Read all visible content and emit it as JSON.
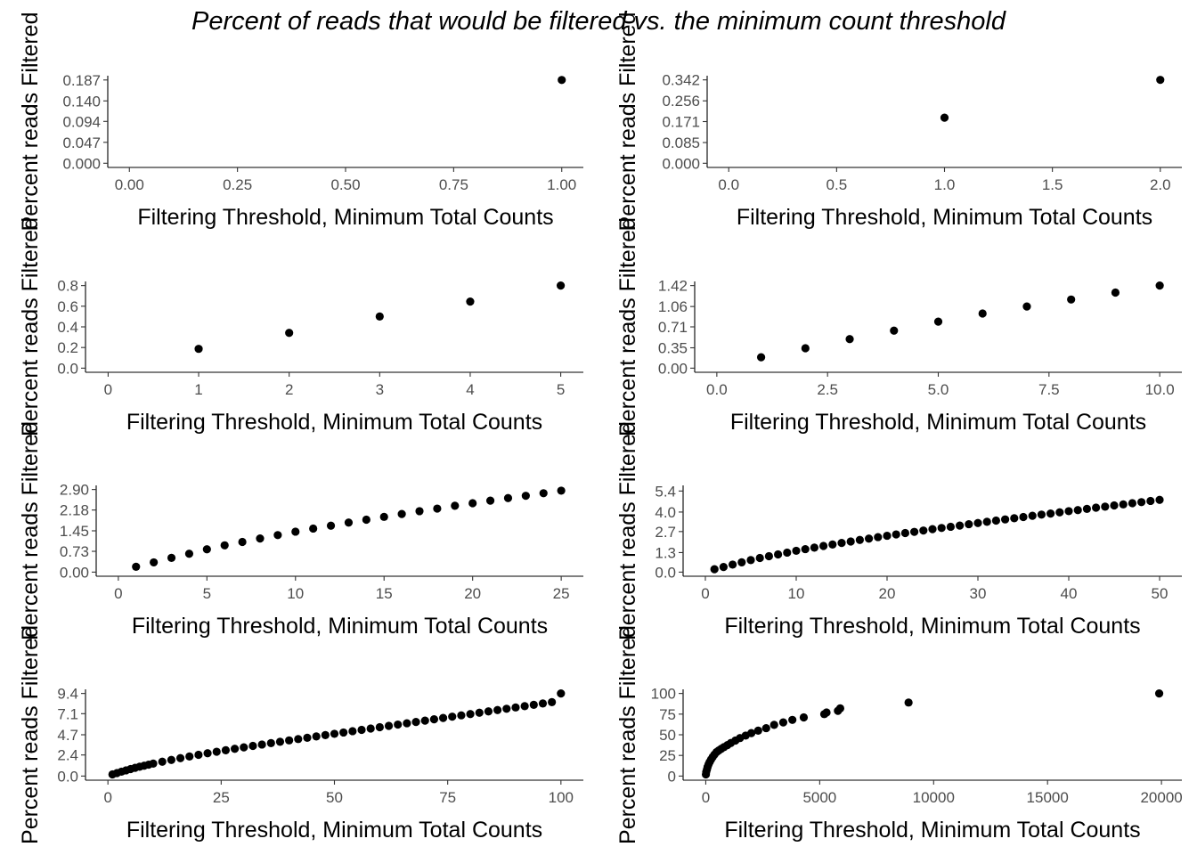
{
  "title": "Percent of reads that would be filtered vs. the minimum count threshold",
  "chart_data": [
    {
      "type": "scatter",
      "xlabel": "Filtering Threshold, Minimum Total Counts",
      "ylabel": "Percent reads Filtered",
      "xlim": [
        -0.05,
        1.05
      ],
      "ylim": [
        -0.0094,
        0.1966
      ],
      "xticks": [
        0,
        0.25,
        0.5,
        0.75,
        1
      ],
      "xtick_labels": [
        "0.00",
        "0.25",
        "0.50",
        "0.75",
        "1.00"
      ],
      "yticks": [
        0,
        0.047,
        0.094,
        0.14,
        0.187
      ],
      "ytick_labels": [
        "0.000",
        "0.047",
        "0.094",
        "0.140",
        "0.187"
      ],
      "x": [
        1
      ],
      "y": [
        0.187
      ],
      "grid": false
    },
    {
      "type": "scatter",
      "xlabel": "Filtering Threshold, Minimum Total Counts",
      "ylabel": "Percent reads Filtered",
      "xlim": [
        -0.1,
        2.1
      ],
      "ylim": [
        -0.0171,
        0.3591
      ],
      "xticks": [
        0,
        0.5,
        1,
        1.5,
        2
      ],
      "xtick_labels": [
        "0.0",
        "0.5",
        "1.0",
        "1.5",
        "2.0"
      ],
      "yticks": [
        0,
        0.085,
        0.171,
        0.256,
        0.342
      ],
      "ytick_labels": [
        "0.000",
        "0.085",
        "0.171",
        "0.256",
        "0.342"
      ],
      "x": [
        1,
        2
      ],
      "y": [
        0.187,
        0.342
      ],
      "grid": false
    },
    {
      "type": "scatter",
      "xlabel": "Filtering Threshold, Minimum Total Counts",
      "ylabel": "Percent reads Filtered",
      "xlim": [
        -0.25,
        5.25
      ],
      "ylim": [
        -0.04,
        0.84
      ],
      "xticks": [
        0,
        1,
        2,
        3,
        4,
        5
      ],
      "xtick_labels": [
        "0",
        "1",
        "2",
        "3",
        "4",
        "5"
      ],
      "yticks": [
        0,
        0.2,
        0.4,
        0.6,
        0.8
      ],
      "ytick_labels": [
        "0.0",
        "0.2",
        "0.4",
        "0.6",
        "0.8"
      ],
      "x": [
        1,
        2,
        3,
        4,
        5
      ],
      "y": [
        0.187,
        0.342,
        0.5,
        0.645,
        0.8
      ],
      "grid": false
    },
    {
      "type": "scatter",
      "xlabel": "Filtering Threshold, Minimum Total Counts",
      "ylabel": "Percent reads Filtered",
      "xlim": [
        -0.5,
        10.5
      ],
      "ylim": [
        -0.071,
        1.491
      ],
      "xticks": [
        0,
        2.5,
        5,
        7.5,
        10
      ],
      "xtick_labels": [
        "0.0",
        "2.5",
        "5.0",
        "7.5",
        "10.0"
      ],
      "yticks": [
        0,
        0.35,
        0.71,
        1.06,
        1.42
      ],
      "ytick_labels": [
        "0.00",
        "0.35",
        "0.71",
        "1.06",
        "1.42"
      ],
      "x": [
        1,
        2,
        3,
        4,
        5,
        6,
        7,
        8,
        9,
        10
      ],
      "y": [
        0.187,
        0.342,
        0.5,
        0.645,
        0.8,
        0.94,
        1.06,
        1.18,
        1.3,
        1.42
      ],
      "grid": false
    },
    {
      "type": "scatter",
      "xlabel": "Filtering Threshold, Minimum Total Counts",
      "ylabel": "Percent reads Filtered",
      "xlim": [
        -1.25,
        26.25
      ],
      "ylim": [
        -0.145,
        3.045
      ],
      "xticks": [
        0,
        5,
        10,
        15,
        20,
        25
      ],
      "xtick_labels": [
        "0",
        "5",
        "10",
        "15",
        "20",
        "25"
      ],
      "yticks": [
        0,
        0.73,
        1.45,
        2.18,
        2.9
      ],
      "ytick_labels": [
        "0.00",
        "0.73",
        "1.45",
        "2.18",
        "2.90"
      ],
      "x": [
        1,
        2,
        3,
        4,
        5,
        6,
        7,
        8,
        9,
        10,
        11,
        12,
        13,
        14,
        15,
        16,
        17,
        18,
        19,
        20,
        21,
        22,
        23,
        24,
        25
      ],
      "y": [
        0.187,
        0.342,
        0.5,
        0.645,
        0.8,
        0.94,
        1.06,
        1.18,
        1.3,
        1.42,
        1.53,
        1.63,
        1.74,
        1.84,
        1.94,
        2.04,
        2.14,
        2.23,
        2.33,
        2.42,
        2.51,
        2.6,
        2.68,
        2.77,
        2.86
      ],
      "grid": false
    },
    {
      "type": "scatter",
      "xlabel": "Filtering Threshold, Minimum Total Counts",
      "ylabel": "Percent reads Filtered",
      "xlim": [
        -2.45,
        52.45
      ],
      "ylim": [
        -0.275,
        5.775
      ],
      "xticks": [
        0,
        10,
        20,
        30,
        40,
        50
      ],
      "xtick_labels": [
        "0",
        "10",
        "20",
        "30",
        "40",
        "50"
      ],
      "yticks": [
        0,
        1.3,
        2.7,
        4.0,
        5.4
      ],
      "ytick_labels": [
        "0.0",
        "1.3",
        "2.7",
        "4.0",
        "5.4"
      ],
      "x": [
        1,
        2,
        3,
        4,
        5,
        6,
        7,
        8,
        9,
        10,
        11,
        12,
        13,
        14,
        15,
        16,
        17,
        18,
        19,
        20,
        21,
        22,
        23,
        24,
        25,
        26,
        27,
        28,
        29,
        30,
        31,
        32,
        33,
        34,
        35,
        36,
        37,
        38,
        39,
        40,
        41,
        42,
        43,
        44,
        45,
        46,
        47,
        48,
        49,
        50
      ],
      "y": [
        0.19,
        0.34,
        0.5,
        0.65,
        0.8,
        0.94,
        1.06,
        1.18,
        1.3,
        1.42,
        1.53,
        1.63,
        1.74,
        1.84,
        1.94,
        2.04,
        2.14,
        2.23,
        2.33,
        2.42,
        2.51,
        2.6,
        2.68,
        2.77,
        2.86,
        2.94,
        3.02,
        3.1,
        3.19,
        3.27,
        3.35,
        3.43,
        3.51,
        3.59,
        3.67,
        3.75,
        3.83,
        3.9,
        3.98,
        4.06,
        4.13,
        4.21,
        4.29,
        4.36,
        4.44,
        4.51,
        4.59,
        4.66,
        4.74,
        4.81
      ],
      "grid": false
    },
    {
      "type": "scatter",
      "xlabel": "Filtering Threshold, Minimum Total Counts",
      "ylabel": "Percent reads Filtered",
      "xlim": [
        -4.95,
        104.95
      ],
      "ylim": [
        -0.47,
        9.87
      ],
      "xticks": [
        0,
        25,
        50,
        75,
        100
      ],
      "xtick_labels": [
        "0",
        "25",
        "50",
        "75",
        "100"
      ],
      "yticks": [
        0,
        2.4,
        4.7,
        7.1,
        9.4
      ],
      "ytick_labels": [
        "0.0",
        "2.4",
        "4.7",
        "7.1",
        "9.4"
      ],
      "x": [
        1,
        2,
        3,
        4,
        5,
        6,
        7,
        8,
        9,
        10,
        12,
        14,
        16,
        18,
        20,
        22,
        24,
        26,
        28,
        30,
        32,
        34,
        36,
        38,
        40,
        42,
        44,
        46,
        48,
        50,
        52,
        54,
        56,
        58,
        60,
        62,
        64,
        66,
        68,
        70,
        72,
        74,
        76,
        78,
        80,
        82,
        84,
        86,
        88,
        90,
        92,
        94,
        96,
        98,
        100
      ],
      "y": [
        0.19,
        0.34,
        0.5,
        0.65,
        0.8,
        0.94,
        1.06,
        1.18,
        1.3,
        1.42,
        1.63,
        1.84,
        2.04,
        2.23,
        2.42,
        2.6,
        2.77,
        2.94,
        3.1,
        3.27,
        3.43,
        3.59,
        3.75,
        3.9,
        4.06,
        4.21,
        4.36,
        4.51,
        4.66,
        4.81,
        4.96,
        5.11,
        5.26,
        5.41,
        5.56,
        5.71,
        5.86,
        6.01,
        6.16,
        6.31,
        6.46,
        6.61,
        6.76,
        6.91,
        7.06,
        7.21,
        7.36,
        7.51,
        7.66,
        7.81,
        7.96,
        8.11,
        8.26,
        8.41,
        9.4
      ],
      "grid": false
    },
    {
      "type": "scatter",
      "xlabel": "Filtering Threshold, Minimum Total Counts",
      "ylabel": "Percent reads Filtered",
      "xlim": [
        -995,
        20895
      ],
      "ylim": [
        -5,
        105
      ],
      "xticks": [
        0,
        5000,
        10000,
        15000,
        20000
      ],
      "xtick_labels": [
        "0",
        "5000",
        "10000",
        "15000",
        "20000"
      ],
      "yticks": [
        0,
        25,
        50,
        75,
        100
      ],
      "ytick_labels": [
        "0",
        "25",
        "50",
        "75",
        "100"
      ],
      "x": [
        5,
        20,
        50,
        80,
        120,
        170,
        230,
        300,
        380,
        470,
        570,
        680,
        800,
        950,
        1100,
        1300,
        1500,
        1750,
        2000,
        2300,
        2650,
        3000,
        3400,
        3800,
        4300,
        5200,
        5300,
        5800,
        5900,
        8900,
        19900
      ],
      "y": [
        2,
        5,
        8,
        11,
        14,
        17,
        20,
        23,
        26,
        29,
        31,
        33,
        35,
        37.5,
        40,
        43,
        46,
        49,
        52,
        55,
        58,
        62,
        65,
        68,
        71,
        75,
        77,
        79,
        82,
        89,
        100
      ],
      "grid": false
    }
  ]
}
